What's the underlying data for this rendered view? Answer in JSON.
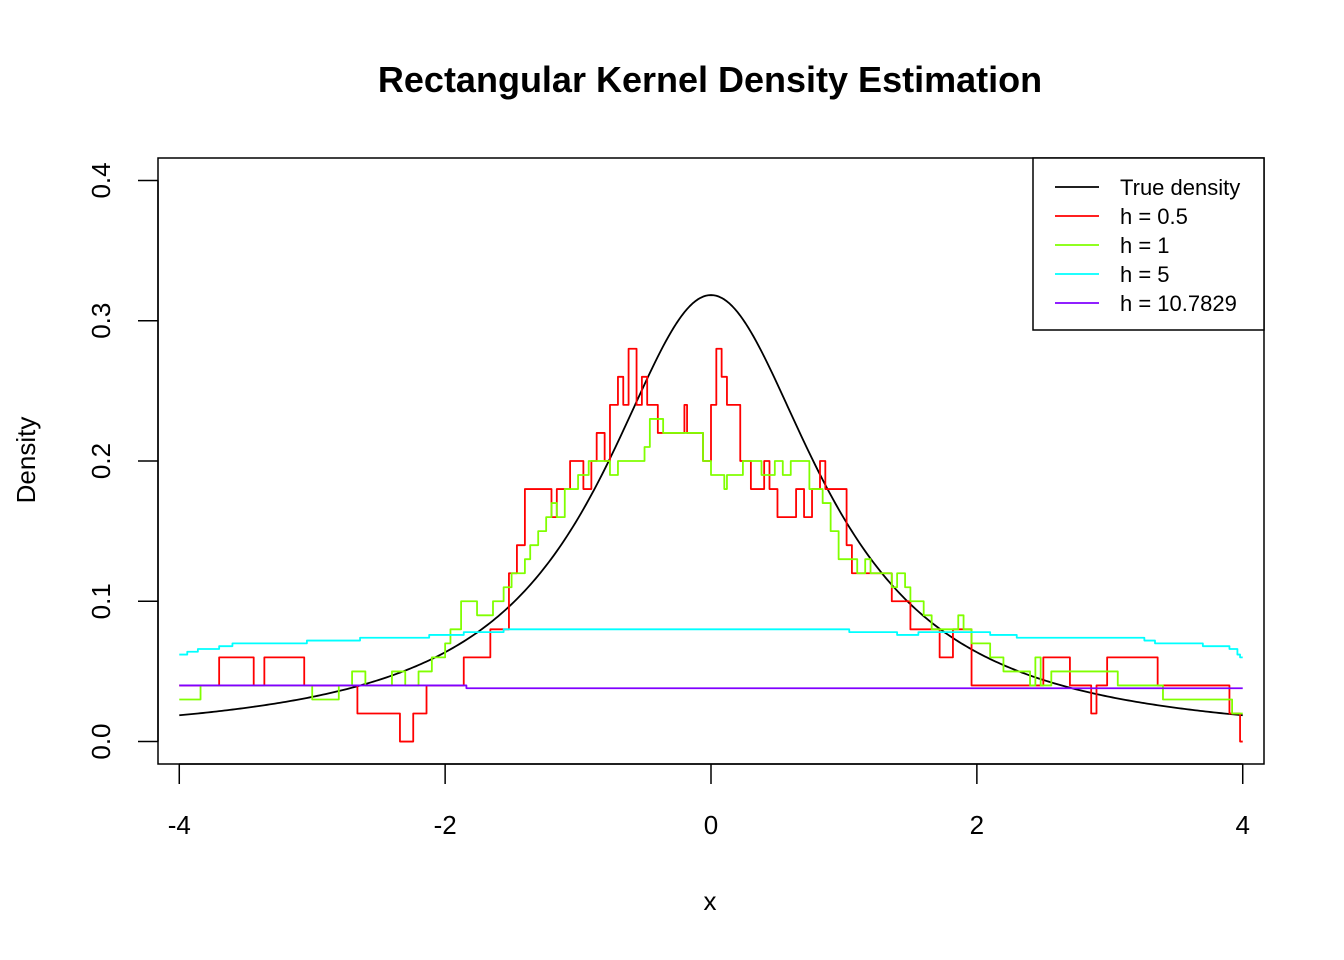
{
  "chart_data": {
    "type": "line",
    "title": "Rectangular Kernel Density Estimation",
    "xlabel": "x",
    "ylabel": "Density",
    "xlim": [
      -4.16,
      4.16
    ],
    "ylim": [
      -0.016,
      0.416
    ],
    "xticks": [
      -4,
      -2,
      0,
      2,
      4
    ],
    "yticks": [
      0.0,
      0.1,
      0.2,
      0.3,
      0.4
    ],
    "xtick_labels": [
      "-4",
      "-2",
      "0",
      "2",
      "4"
    ],
    "ytick_labels": [
      "0.0",
      "0.1",
      "0.2",
      "0.3",
      "0.4"
    ],
    "grid": false,
    "legend_position": "top-right",
    "series": [
      {
        "name": "True density",
        "color": "#000000",
        "style": "curve",
        "function": "cauchy",
        "x_range": [
          -4,
          4
        ]
      },
      {
        "name": "h =  0.5",
        "color": "#FF0000",
        "style": "step",
        "points": [
          [
            -4.0,
            0.04
          ],
          [
            -3.7,
            0.04
          ],
          [
            -3.7,
            0.06
          ],
          [
            -3.44,
            0.06
          ],
          [
            -3.44,
            0.04
          ],
          [
            -3.36,
            0.04
          ],
          [
            -3.36,
            0.06
          ],
          [
            -3.06,
            0.06
          ],
          [
            -3.06,
            0.04
          ],
          [
            -2.66,
            0.04
          ],
          [
            -2.66,
            0.02
          ],
          [
            -2.34,
            0.02
          ],
          [
            -2.34,
            0.0
          ],
          [
            -2.24,
            0.0
          ],
          [
            -2.24,
            0.02
          ],
          [
            -2.14,
            0.02
          ],
          [
            -2.14,
            0.04
          ],
          [
            -1.86,
            0.04
          ],
          [
            -1.86,
            0.06
          ],
          [
            -1.66,
            0.06
          ],
          [
            -1.66,
            0.08
          ],
          [
            -1.52,
            0.08
          ],
          [
            -1.52,
            0.12
          ],
          [
            -1.46,
            0.12
          ],
          [
            -1.46,
            0.14
          ],
          [
            -1.4,
            0.14
          ],
          [
            -1.4,
            0.18
          ],
          [
            -1.2,
            0.18
          ],
          [
            -1.2,
            0.16
          ],
          [
            -1.16,
            0.16
          ],
          [
            -1.16,
            0.18
          ],
          [
            -1.06,
            0.18
          ],
          [
            -1.06,
            0.2
          ],
          [
            -0.96,
            0.2
          ],
          [
            -0.96,
            0.18
          ],
          [
            -0.9,
            0.18
          ],
          [
            -0.9,
            0.2
          ],
          [
            -0.86,
            0.2
          ],
          [
            -0.86,
            0.22
          ],
          [
            -0.8,
            0.22
          ],
          [
            -0.8,
            0.2
          ],
          [
            -0.76,
            0.2
          ],
          [
            -0.76,
            0.24
          ],
          [
            -0.7,
            0.24
          ],
          [
            -0.7,
            0.26
          ],
          [
            -0.66,
            0.26
          ],
          [
            -0.66,
            0.24
          ],
          [
            -0.62,
            0.24
          ],
          [
            -0.62,
            0.28
          ],
          [
            -0.56,
            0.28
          ],
          [
            -0.56,
            0.24
          ],
          [
            -0.52,
            0.24
          ],
          [
            -0.52,
            0.26
          ],
          [
            -0.48,
            0.26
          ],
          [
            -0.48,
            0.24
          ],
          [
            -0.4,
            0.24
          ],
          [
            -0.4,
            0.22
          ],
          [
            -0.2,
            0.22
          ],
          [
            -0.2,
            0.24
          ],
          [
            -0.18,
            0.24
          ],
          [
            -0.18,
            0.22
          ],
          [
            -0.06,
            0.22
          ],
          [
            -0.06,
            0.2
          ],
          [
            0.0,
            0.2
          ],
          [
            0.0,
            0.24
          ],
          [
            0.04,
            0.24
          ],
          [
            0.04,
            0.28
          ],
          [
            0.08,
            0.28
          ],
          [
            0.08,
            0.26
          ],
          [
            0.12,
            0.26
          ],
          [
            0.12,
            0.24
          ],
          [
            0.22,
            0.24
          ],
          [
            0.22,
            0.2
          ],
          [
            0.3,
            0.2
          ],
          [
            0.3,
            0.18
          ],
          [
            0.4,
            0.18
          ],
          [
            0.4,
            0.2
          ],
          [
            0.44,
            0.2
          ],
          [
            0.44,
            0.18
          ],
          [
            0.5,
            0.18
          ],
          [
            0.5,
            0.16
          ],
          [
            0.64,
            0.16
          ],
          [
            0.64,
            0.18
          ],
          [
            0.7,
            0.18
          ],
          [
            0.7,
            0.16
          ],
          [
            0.76,
            0.16
          ],
          [
            0.76,
            0.18
          ],
          [
            0.82,
            0.18
          ],
          [
            0.82,
            0.2
          ],
          [
            0.86,
            0.2
          ],
          [
            0.86,
            0.18
          ],
          [
            1.02,
            0.18
          ],
          [
            1.02,
            0.14
          ],
          [
            1.06,
            0.14
          ],
          [
            1.06,
            0.12
          ],
          [
            1.36,
            0.12
          ],
          [
            1.36,
            0.1
          ],
          [
            1.5,
            0.1
          ],
          [
            1.5,
            0.08
          ],
          [
            1.72,
            0.08
          ],
          [
            1.72,
            0.06
          ],
          [
            1.82,
            0.06
          ],
          [
            1.82,
            0.08
          ],
          [
            1.96,
            0.08
          ],
          [
            1.96,
            0.04
          ],
          [
            2.5,
            0.04
          ],
          [
            2.5,
            0.06
          ],
          [
            2.7,
            0.06
          ],
          [
            2.7,
            0.04
          ],
          [
            2.86,
            0.04
          ],
          [
            2.86,
            0.02
          ],
          [
            2.9,
            0.02
          ],
          [
            2.9,
            0.04
          ],
          [
            2.98,
            0.04
          ],
          [
            2.98,
            0.06
          ],
          [
            3.36,
            0.06
          ],
          [
            3.36,
            0.04
          ],
          [
            3.9,
            0.04
          ],
          [
            3.9,
            0.02
          ],
          [
            3.98,
            0.02
          ],
          [
            3.98,
            0.0
          ],
          [
            4.0,
            0.0
          ]
        ]
      },
      {
        "name": "h =  1",
        "color": "#80FF00",
        "style": "step",
        "points": [
          [
            -4.0,
            0.03
          ],
          [
            -3.84,
            0.03
          ],
          [
            -3.84,
            0.04
          ],
          [
            -3.0,
            0.04
          ],
          [
            -3.0,
            0.03
          ],
          [
            -2.8,
            0.03
          ],
          [
            -2.8,
            0.04
          ],
          [
            -2.7,
            0.04
          ],
          [
            -2.7,
            0.05
          ],
          [
            -2.6,
            0.05
          ],
          [
            -2.6,
            0.04
          ],
          [
            -2.4,
            0.04
          ],
          [
            -2.4,
            0.05
          ],
          [
            -2.3,
            0.05
          ],
          [
            -2.3,
            0.04
          ],
          [
            -2.2,
            0.04
          ],
          [
            -2.2,
            0.05
          ],
          [
            -2.1,
            0.05
          ],
          [
            -2.1,
            0.06
          ],
          [
            -2.0,
            0.06
          ],
          [
            -2.0,
            0.07
          ],
          [
            -1.96,
            0.07
          ],
          [
            -1.96,
            0.08
          ],
          [
            -1.88,
            0.08
          ],
          [
            -1.88,
            0.1
          ],
          [
            -1.76,
            0.1
          ],
          [
            -1.76,
            0.09
          ],
          [
            -1.64,
            0.09
          ],
          [
            -1.64,
            0.1
          ],
          [
            -1.56,
            0.1
          ],
          [
            -1.56,
            0.11
          ],
          [
            -1.5,
            0.11
          ],
          [
            -1.5,
            0.12
          ],
          [
            -1.4,
            0.12
          ],
          [
            -1.4,
            0.13
          ],
          [
            -1.36,
            0.13
          ],
          [
            -1.36,
            0.14
          ],
          [
            -1.3,
            0.14
          ],
          [
            -1.3,
            0.15
          ],
          [
            -1.24,
            0.15
          ],
          [
            -1.24,
            0.16
          ],
          [
            -1.2,
            0.16
          ],
          [
            -1.2,
            0.17
          ],
          [
            -1.16,
            0.17
          ],
          [
            -1.16,
            0.16
          ],
          [
            -1.1,
            0.16
          ],
          [
            -1.1,
            0.18
          ],
          [
            -1.0,
            0.18
          ],
          [
            -1.0,
            0.19
          ],
          [
            -0.92,
            0.19
          ],
          [
            -0.92,
            0.2
          ],
          [
            -0.76,
            0.2
          ],
          [
            -0.76,
            0.19
          ],
          [
            -0.7,
            0.19
          ],
          [
            -0.7,
            0.2
          ],
          [
            -0.5,
            0.2
          ],
          [
            -0.5,
            0.21
          ],
          [
            -0.46,
            0.21
          ],
          [
            -0.46,
            0.23
          ],
          [
            -0.36,
            0.23
          ],
          [
            -0.36,
            0.22
          ],
          [
            -0.06,
            0.22
          ],
          [
            -0.06,
            0.2
          ],
          [
            0.0,
            0.2
          ],
          [
            0.0,
            0.19
          ],
          [
            0.1,
            0.19
          ],
          [
            0.1,
            0.18
          ],
          [
            0.12,
            0.18
          ],
          [
            0.12,
            0.19
          ],
          [
            0.24,
            0.19
          ],
          [
            0.24,
            0.2
          ],
          [
            0.38,
            0.2
          ],
          [
            0.38,
            0.19
          ],
          [
            0.48,
            0.19
          ],
          [
            0.48,
            0.2
          ],
          [
            0.54,
            0.2
          ],
          [
            0.54,
            0.19
          ],
          [
            0.6,
            0.19
          ],
          [
            0.6,
            0.2
          ],
          [
            0.74,
            0.2
          ],
          [
            0.74,
            0.18
          ],
          [
            0.84,
            0.18
          ],
          [
            0.84,
            0.17
          ],
          [
            0.9,
            0.17
          ],
          [
            0.9,
            0.15
          ],
          [
            0.96,
            0.15
          ],
          [
            0.96,
            0.13
          ],
          [
            1.1,
            0.13
          ],
          [
            1.1,
            0.12
          ],
          [
            1.16,
            0.12
          ],
          [
            1.16,
            0.13
          ],
          [
            1.2,
            0.13
          ],
          [
            1.2,
            0.12
          ],
          [
            1.36,
            0.12
          ],
          [
            1.36,
            0.11
          ],
          [
            1.4,
            0.11
          ],
          [
            1.4,
            0.12
          ],
          [
            1.46,
            0.12
          ],
          [
            1.46,
            0.11
          ],
          [
            1.5,
            0.11
          ],
          [
            1.5,
            0.1
          ],
          [
            1.6,
            0.1
          ],
          [
            1.6,
            0.09
          ],
          [
            1.66,
            0.09
          ],
          [
            1.66,
            0.08
          ],
          [
            1.86,
            0.08
          ],
          [
            1.86,
            0.09
          ],
          [
            1.9,
            0.09
          ],
          [
            1.9,
            0.08
          ],
          [
            1.96,
            0.08
          ],
          [
            1.96,
            0.07
          ],
          [
            2.1,
            0.07
          ],
          [
            2.1,
            0.06
          ],
          [
            2.2,
            0.06
          ],
          [
            2.2,
            0.05
          ],
          [
            2.4,
            0.05
          ],
          [
            2.4,
            0.04
          ],
          [
            2.44,
            0.04
          ],
          [
            2.44,
            0.06
          ],
          [
            2.48,
            0.06
          ],
          [
            2.48,
            0.04
          ],
          [
            2.56,
            0.04
          ],
          [
            2.56,
            0.05
          ],
          [
            3.06,
            0.05
          ],
          [
            3.06,
            0.04
          ],
          [
            3.4,
            0.04
          ],
          [
            3.4,
            0.03
          ],
          [
            3.92,
            0.03
          ],
          [
            3.92,
            0.02
          ],
          [
            4.0,
            0.02
          ]
        ]
      },
      {
        "name": "h =  5",
        "color": "#00FFFF",
        "style": "step",
        "points": [
          [
            -4.0,
            0.062
          ],
          [
            -3.94,
            0.062
          ],
          [
            -3.94,
            0.064
          ],
          [
            -3.86,
            0.064
          ],
          [
            -3.86,
            0.066
          ],
          [
            -3.7,
            0.066
          ],
          [
            -3.7,
            0.068
          ],
          [
            -3.6,
            0.068
          ],
          [
            -3.6,
            0.07
          ],
          [
            -3.04,
            0.07
          ],
          [
            -3.04,
            0.072
          ],
          [
            -2.64,
            0.072
          ],
          [
            -2.64,
            0.074
          ],
          [
            -2.12,
            0.074
          ],
          [
            -2.12,
            0.076
          ],
          [
            -1.86,
            0.076
          ],
          [
            -1.86,
            0.078
          ],
          [
            -1.56,
            0.078
          ],
          [
            -1.56,
            0.08
          ],
          [
            1.04,
            0.08
          ],
          [
            1.04,
            0.078
          ],
          [
            1.4,
            0.078
          ],
          [
            1.4,
            0.076
          ],
          [
            1.56,
            0.076
          ],
          [
            1.56,
            0.078
          ],
          [
            2.1,
            0.078
          ],
          [
            2.1,
            0.076
          ],
          [
            2.3,
            0.076
          ],
          [
            2.3,
            0.074
          ],
          [
            3.26,
            0.074
          ],
          [
            3.26,
            0.072
          ],
          [
            3.34,
            0.072
          ],
          [
            3.34,
            0.07
          ],
          [
            3.7,
            0.07
          ],
          [
            3.7,
            0.068
          ],
          [
            3.9,
            0.068
          ],
          [
            3.9,
            0.066
          ],
          [
            3.96,
            0.066
          ],
          [
            3.96,
            0.062
          ],
          [
            3.98,
            0.062
          ],
          [
            3.98,
            0.06
          ],
          [
            4.0,
            0.06
          ]
        ]
      },
      {
        "name": "h =  10.7829",
        "color": "#8000FF",
        "style": "step",
        "points": [
          [
            -4.0,
            0.04
          ],
          [
            -1.84,
            0.04
          ],
          [
            -1.84,
            0.038
          ],
          [
            4.0,
            0.038
          ]
        ]
      }
    ]
  }
}
